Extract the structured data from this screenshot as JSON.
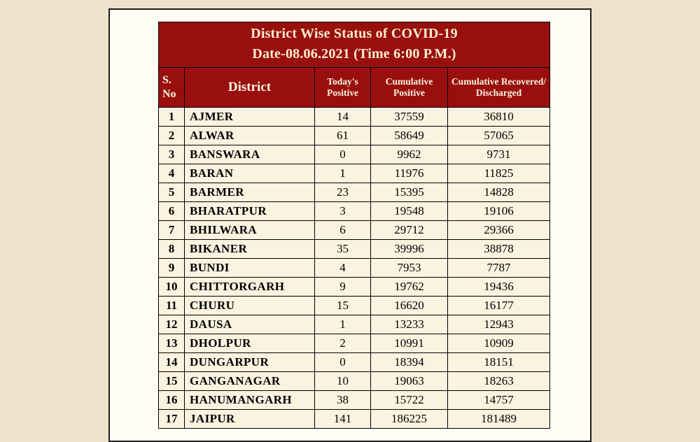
{
  "colors": {
    "page_bg": "#f0e2ca",
    "panel_bg": "#fffdf4",
    "header_bg": "#990f0f",
    "header_text": "#fdf4dd",
    "body_bg": "#fcf2e0",
    "body_text": "#000000"
  },
  "table": {
    "title_line1": "District Wise Status of  COVID-19",
    "title_line2": "Date-08.06.2021 (Time 6:00 P.M.)",
    "columns": [
      "S. No",
      "District",
      "Today's Positive",
      "Cumulative Positive",
      "Cumulative Recovered/ Discharged"
    ],
    "rows": [
      [
        "1",
        "AJMER",
        "14",
        "37559",
        "36810"
      ],
      [
        "2",
        "ALWAR",
        "61",
        "58649",
        "57065"
      ],
      [
        "3",
        "BANSWARA",
        "0",
        "9962",
        "9731"
      ],
      [
        "4",
        "BARAN",
        "1",
        "11976",
        "11825"
      ],
      [
        "5",
        "BARMER",
        "23",
        "15395",
        "14828"
      ],
      [
        "6",
        "BHARATPUR",
        "3",
        "19548",
        "19106"
      ],
      [
        "7",
        "BHILWARA",
        "6",
        "29712",
        "29366"
      ],
      [
        "8",
        "BIKANER",
        "35",
        "39996",
        "38878"
      ],
      [
        "9",
        "BUNDI",
        "4",
        "7953",
        "7787"
      ],
      [
        "10",
        "CHITTORGARH",
        "9",
        "19762",
        "19436"
      ],
      [
        "11",
        "CHURU",
        "15",
        "16620",
        "16177"
      ],
      [
        "12",
        "DAUSA",
        "1",
        "13233",
        "12943"
      ],
      [
        "13",
        "DHOLPUR",
        "2",
        "10991",
        "10909"
      ],
      [
        "14",
        "DUNGARPUR",
        "0",
        "18394",
        "18151"
      ],
      [
        "15",
        "GANGANAGAR",
        "10",
        "19063",
        "18263"
      ],
      [
        "16",
        "HANUMANGARH",
        "38",
        "15722",
        "14757"
      ],
      [
        "17",
        "JAIPUR",
        "141",
        "186225",
        "181489"
      ]
    ]
  }
}
